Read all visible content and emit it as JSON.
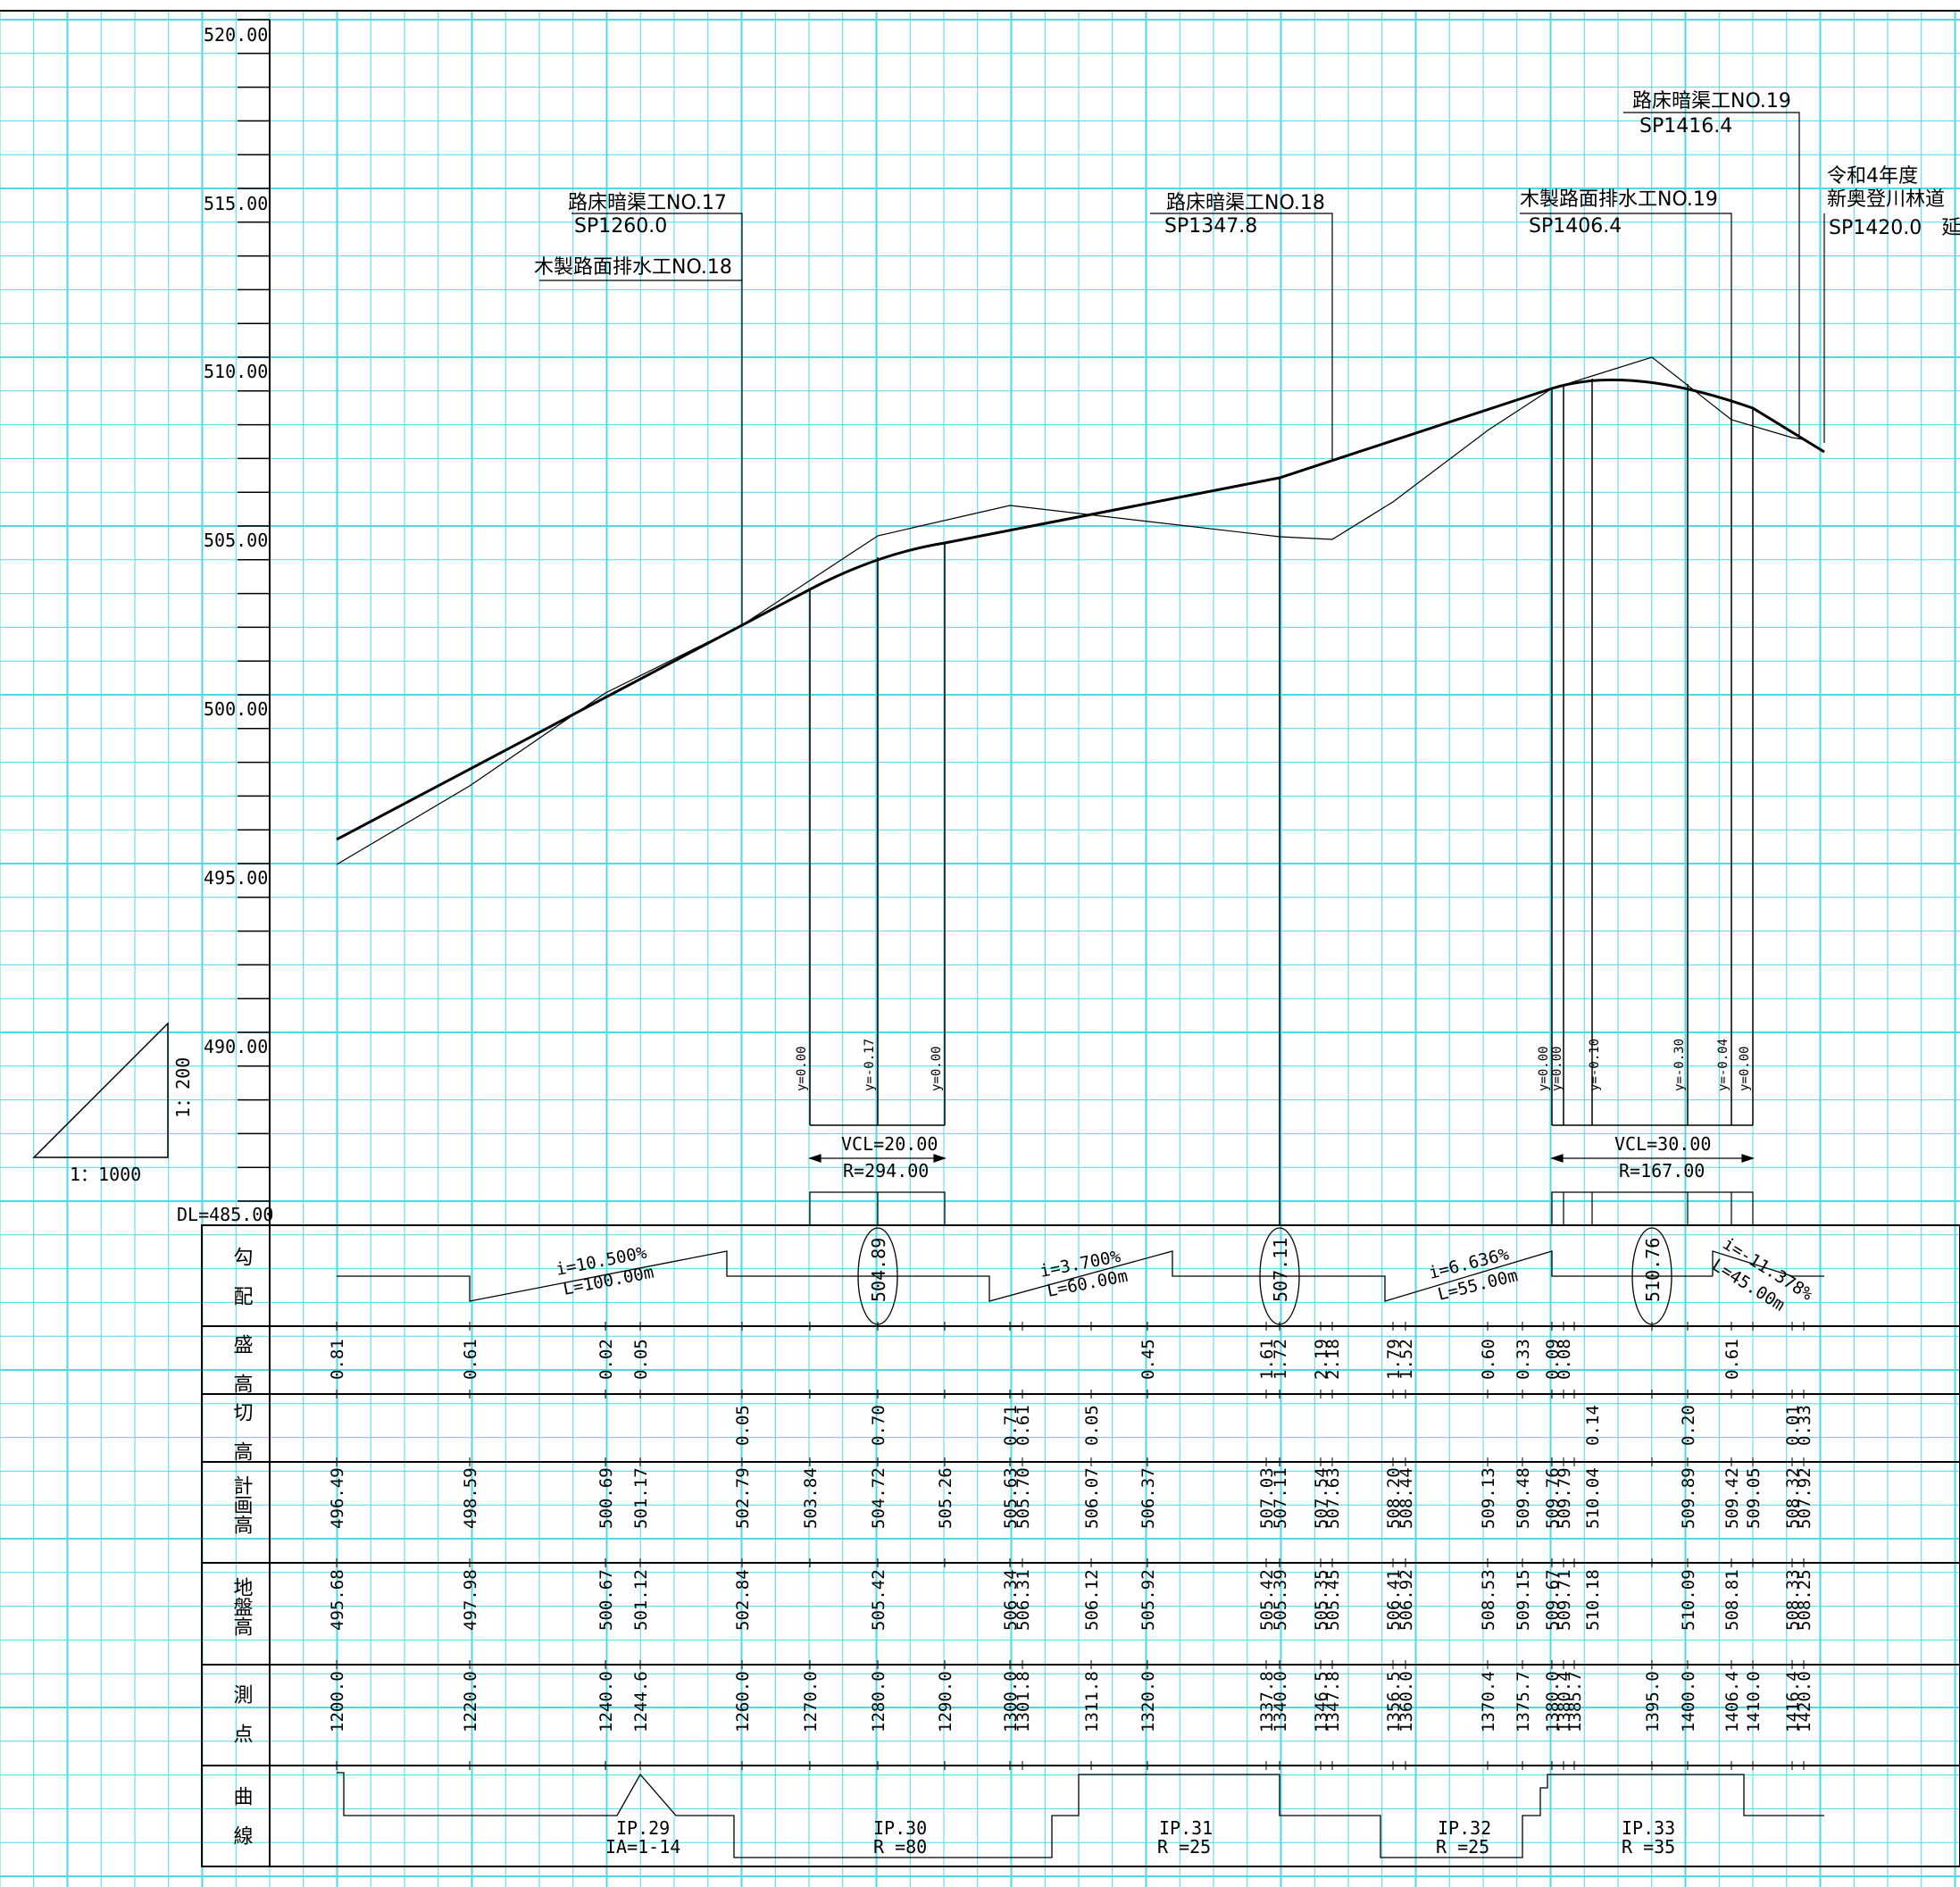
{
  "ylabels": [
    "520.00",
    "515.00",
    "510.00",
    "505.00",
    "500.00",
    "495.00",
    "490.00"
  ],
  "datum": "DL=485.00",
  "scale": {
    "vertical": "1：200",
    "horizontal": "1：1000"
  },
  "top_labels": {
    "l1": "路床暗渠工NO.17",
    "l1b": "SP1260.0",
    "l1c": "木製路面排水工NO.18",
    "l2": "路床暗渠工NO.18",
    "l2b": "SP1347.8",
    "l3": "木製路面排水工NO.19",
    "l3b": "SP1406.4",
    "l4": "路床暗渠工NO.19",
    "l4b": "SP1416.4",
    "l5a": "令和4年度",
    "l5b": "新奥登川林道",
    "l5c": "SP1420.0　延"
  },
  "ordinates": {
    "a1": "y=0.00",
    "a2": "y=-0.17",
    "a3": "y=0.00",
    "b1": "y=0.00",
    "b2": "y=0.00",
    "b3": "y=-0.10",
    "b4": "y=-0.30",
    "b5": "y=-0.04",
    "b6": "y=0.00"
  },
  "vcurves": {
    "v1a": "VCL=20.00",
    "v1b": "R=294.00",
    "v2a": "VCL=30.00",
    "v2b": "R=167.00"
  },
  "row_headers": {
    "r1": "勾　配",
    "r2": "盛　高",
    "r3": "切　高",
    "r4": "計画高",
    "r5": "地盤高",
    "r6": "測　点",
    "r7": "曲　線"
  },
  "grades": {
    "g1a": "i=10.500%",
    "g1b": "L=100.00m",
    "g2a": "i=3.700%",
    "g2b": "L=60.00m",
    "g3a": "i=6.636%",
    "g3b": "L=55.00m",
    "g4a": "i=-11.378%",
    "g4b": "L=45.00m"
  },
  "vpi": {
    "e1": "504.89",
    "e2": "507.11",
    "e3": "510.76"
  },
  "fill": [
    [
      "0.81",
      377
    ],
    [
      "0.61",
      526
    ],
    [
      "0.02",
      678
    ],
    [
      "0.05",
      717
    ],
    [
      "0.45",
      1285
    ],
    [
      "1.61",
      1418
    ],
    [
      "1.72",
      1433
    ],
    [
      "2.19",
      1479
    ],
    [
      "2.18",
      1492
    ],
    [
      "1.79",
      1560
    ],
    [
      "1.52",
      1574
    ],
    [
      "0.60",
      1666
    ],
    [
      "0.33",
      1705
    ],
    [
      "0.09",
      1738
    ],
    [
      "0.08",
      1751
    ],
    [
      "0.61",
      1939
    ]
  ],
  "cut": [
    [
      "0.05",
      831
    ],
    [
      "0.70",
      983
    ],
    [
      "0.71",
      1131
    ],
    [
      "0.61",
      1145
    ],
    [
      "0.05",
      1222
    ],
    [
      "0.14",
      1783
    ],
    [
      "0.20",
      1890
    ],
    [
      "0.01",
      2007
    ],
    [
      "0.33",
      2020
    ]
  ],
  "plan": [
    [
      "496.49",
      377
    ],
    [
      "498.59",
      526
    ],
    [
      "500.69",
      678
    ],
    [
      "501.17",
      717
    ],
    [
      "502.79",
      831
    ],
    [
      "503.84",
      907
    ],
    [
      "504.72",
      983
    ],
    [
      "505.26",
      1058
    ],
    [
      "505.63",
      1131
    ],
    [
      "505.70",
      1145
    ],
    [
      "506.07",
      1222
    ],
    [
      "506.37",
      1285
    ],
    [
      "507.03",
      1418
    ],
    [
      "507.11",
      1433
    ],
    [
      "507.54",
      1479
    ],
    [
      "507.63",
      1492
    ],
    [
      "508.20",
      1560
    ],
    [
      "508.44",
      1574
    ],
    [
      "509.13",
      1666
    ],
    [
      "509.48",
      1705
    ],
    [
      "509.76",
      1738
    ],
    [
      "509.79",
      1751
    ],
    [
      "510.04",
      1783
    ],
    [
      "509.89",
      1890
    ],
    [
      "509.42",
      1939
    ],
    [
      "509.05",
      1963
    ],
    [
      "508.32",
      2007
    ],
    [
      "507.92",
      2020
    ]
  ],
  "ground": [
    [
      "495.68",
      377
    ],
    [
      "497.98",
      526
    ],
    [
      "500.67",
      678
    ],
    [
      "501.12",
      717
    ],
    [
      "502.84",
      831
    ],
    [
      "505.42",
      983
    ],
    [
      "506.34",
      1131
    ],
    [
      "506.31",
      1145
    ],
    [
      "506.12",
      1222
    ],
    [
      "505.92",
      1285
    ],
    [
      "505.42",
      1418
    ],
    [
      "505.39",
      1433
    ],
    [
      "505.35",
      1479
    ],
    [
      "505.45",
      1492
    ],
    [
      "506.41",
      1560
    ],
    [
      "506.92",
      1574
    ],
    [
      "508.53",
      1666
    ],
    [
      "509.15",
      1705
    ],
    [
      "509.67",
      1738
    ],
    [
      "509.71",
      1751
    ],
    [
      "510.18",
      1783
    ],
    [
      "510.09",
      1890
    ],
    [
      "508.81",
      1939
    ],
    [
      "508.33",
      2007
    ],
    [
      "508.25",
      2020
    ]
  ],
  "stations": [
    [
      "1200.0",
      377
    ],
    [
      "1220.0",
      526
    ],
    [
      "1240.0",
      678
    ],
    [
      "1244.6",
      717
    ],
    [
      "1260.0",
      831
    ],
    [
      "1270.0",
      907
    ],
    [
      "1280.0",
      983
    ],
    [
      "1290.0",
      1058
    ],
    [
      "1300.0",
      1131
    ],
    [
      "1301.8",
      1145
    ],
    [
      "1311.8",
      1222
    ],
    [
      "1320.0",
      1285
    ],
    [
      "1337.8",
      1418
    ],
    [
      "1340.0",
      1433
    ],
    [
      "1346.5",
      1479
    ],
    [
      "1347.8",
      1492
    ],
    [
      "1356.5",
      1560
    ],
    [
      "1360.0",
      1574
    ],
    [
      "1370.4",
      1666
    ],
    [
      "1375.7",
      1705
    ],
    [
      "1380.0",
      1738
    ],
    [
      "1380.4",
      1751
    ],
    [
      "1385.7",
      1763
    ],
    [
      "1395.0",
      1850
    ],
    [
      "1400.0",
      1890
    ],
    [
      "1406.4",
      1939
    ],
    [
      "1410.0",
      1963
    ],
    [
      "1416.4",
      2007
    ],
    [
      "1420.0",
      2020
    ]
  ],
  "curves": {
    "c1a": "IP.29",
    "c1b": "IA=1-14",
    "c2a": "IP.30",
    "c2b": "R =80",
    "c3a": "IP.31",
    "c3b": "R =25",
    "c4a": "IP.32",
    "c4b": "R =25",
    "c5a": "IP.33",
    "c5b": "R =35"
  }
}
